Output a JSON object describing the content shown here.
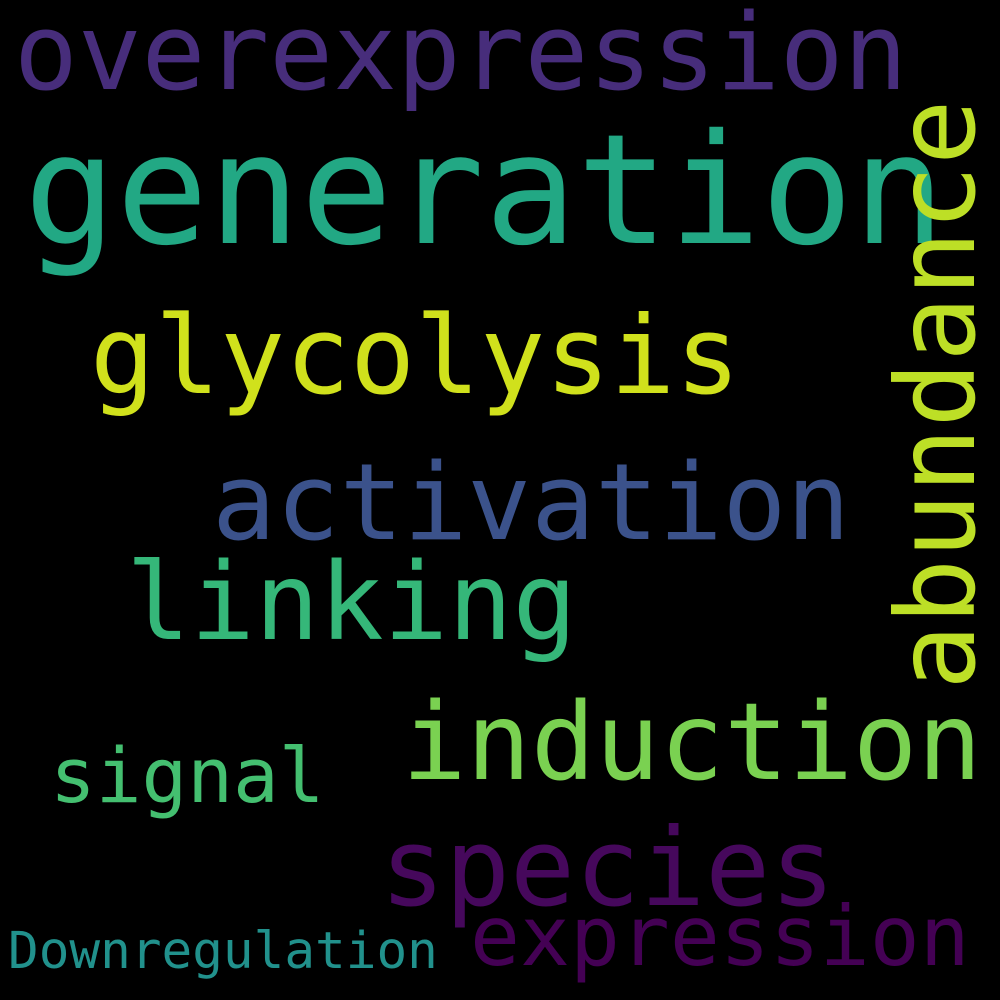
{
  "words": {
    "overexpression": {
      "text": "overexpression",
      "color": "#472d7b"
    },
    "generation": {
      "text": "generation",
      "color": "#22a884"
    },
    "glycolysis": {
      "text": "glycolysis",
      "color": "#d0e11c"
    },
    "activation": {
      "text": "activation",
      "color": "#3b528b"
    },
    "linking": {
      "text": "linking",
      "color": "#35b779"
    },
    "induction": {
      "text": "induction",
      "color": "#7ad151"
    },
    "signal": {
      "text": "signal",
      "color": "#44bf70"
    },
    "species": {
      "text": "species",
      "color": "#46085c"
    },
    "expression": {
      "text": "expression",
      "color": "#440154"
    },
    "downregulation": {
      "text": "Downregulation",
      "color": "#21918c"
    },
    "abundance": {
      "text": "abundance",
      "color": "#bddf26"
    }
  },
  "background": "#000000"
}
